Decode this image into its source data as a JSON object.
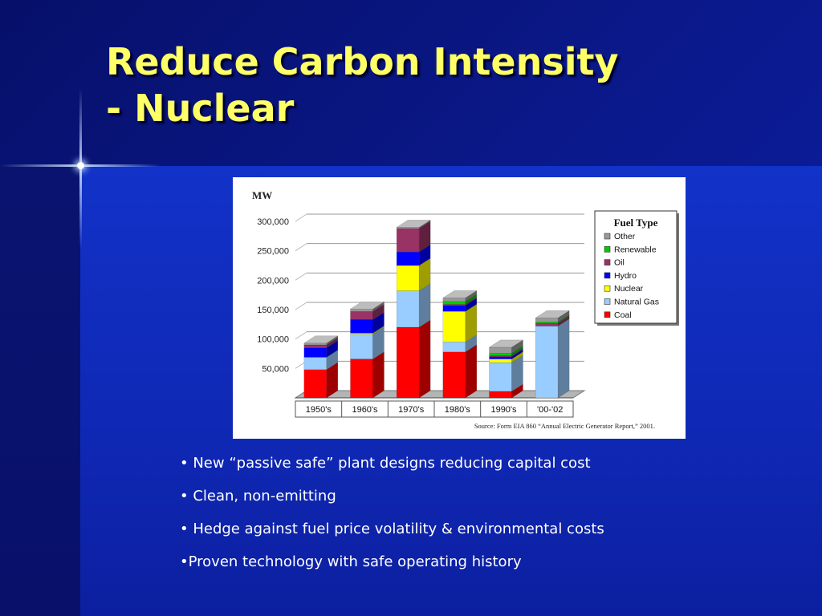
{
  "slide": {
    "title_line1": "Reduce Carbon Intensity",
    "title_line2": "- Nuclear",
    "bullets": [
      "• New “passive safe” plant designs reducing capital cost",
      "• Clean, non-emitting",
      "• Hedge against fuel price volatility & environmental costs",
      "•Proven technology with safe operating history"
    ]
  },
  "chart_data": {
    "type": "bar",
    "stacked": true,
    "three_d": true,
    "title": "",
    "ylabel": "MW",
    "xlabel": "",
    "ylim": [
      0,
      300000
    ],
    "yticks": [
      {
        "value": 50000,
        "label": "50,000"
      },
      {
        "value": 100000,
        "label": "100,000"
      },
      {
        "value": 150000,
        "label": "150,000"
      },
      {
        "value": 200000,
        "label": "200,000"
      },
      {
        "value": 250000,
        "label": "250,000"
      },
      {
        "value": 300000,
        "label": "300,000"
      }
    ],
    "grid": true,
    "categories": [
      "1950's",
      "1960's",
      "1970's",
      "1980's",
      "1990's",
      "'00-'02"
    ],
    "legend_title": "Fuel Type",
    "legend_position": "right",
    "series": [
      {
        "name": "Coal",
        "color": "#ff0000",
        "values": [
          48000,
          66000,
          120000,
          78000,
          11000,
          0
        ]
      },
      {
        "name": "Natural Gas",
        "color": "#99ccff",
        "values": [
          21000,
          42000,
          62000,
          17000,
          49000,
          122000
        ]
      },
      {
        "name": "Nuclear",
        "color": "#ffff00",
        "values": [
          0,
          2000,
          43000,
          52000,
          6000,
          0
        ]
      },
      {
        "name": "Hydro",
        "color": "#0000ff",
        "values": [
          16000,
          23000,
          23000,
          10000,
          4000,
          0
        ]
      },
      {
        "name": "Oil",
        "color": "#993366",
        "values": [
          5000,
          14000,
          40000,
          2000,
          2000,
          5000
        ]
      },
      {
        "name": "Renewable",
        "color": "#00cc00",
        "values": [
          0,
          0,
          0,
          5000,
          4000,
          2000
        ]
      },
      {
        "name": "Other",
        "color": "#999999",
        "values": [
          3000,
          4000,
          2000,
          6000,
          10000,
          7000
        ]
      }
    ],
    "source_note": "Source: Form EIA 860 “Annual Electric Generator Report,” 2001."
  }
}
